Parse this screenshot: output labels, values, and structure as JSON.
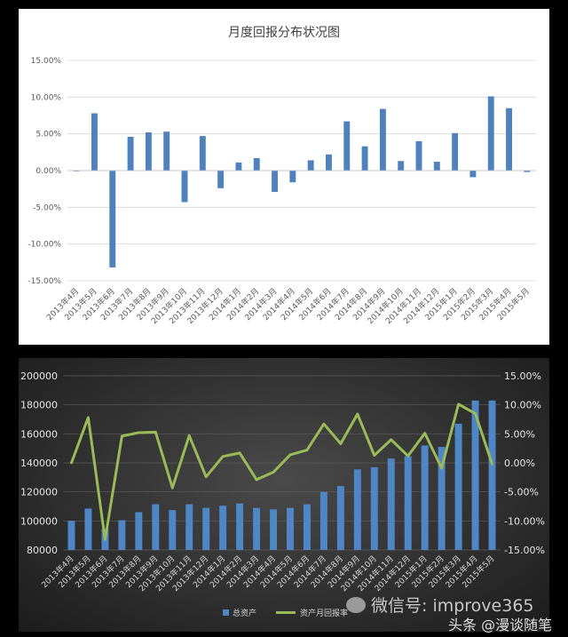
{
  "chart_data": [
    {
      "type": "bar",
      "title": "月度回报分布状况图",
      "categories": [
        "2013年4月",
        "2013年5月",
        "2013年6月",
        "2013年7月",
        "2013年8月",
        "2013年9月",
        "2013年10月",
        "2013年11月",
        "2013年12月",
        "2014年1月",
        "2014年2月",
        "2014年3月",
        "2014年4月",
        "2014年5月",
        "2014年6月",
        "2014年7月",
        "2014年8月",
        "2014年9月",
        "2014年10月",
        "2014年11月",
        "2014年12月",
        "2015年1月",
        "2015年2月",
        "2015年3月",
        "2015年4月",
        "2015年5月"
      ],
      "values": [
        0.0,
        7.8,
        -13.2,
        4.6,
        5.2,
        5.3,
        -4.3,
        4.7,
        -2.4,
        1.1,
        1.7,
        -2.9,
        -1.6,
        1.4,
        2.2,
        6.7,
        3.3,
        8.4,
        1.3,
        4.0,
        1.2,
        5.1,
        -0.9,
        10.1,
        8.5,
        -0.2
      ],
      "ylim": [
        -15,
        15
      ],
      "yticks": [
        "15.00%",
        "10.00%",
        "5.00%",
        "0.00%",
        "-5.00%",
        "-10.00%",
        "-15.00%"
      ],
      "color": "#4f81bd"
    },
    {
      "type": "bar+line",
      "categories": [
        "2013年4月",
        "2013年5月",
        "2013年6月",
        "2013年7月",
        "2013年8月",
        "2013年9月",
        "2013年10月",
        "2013年11月",
        "2013年12月",
        "2014年1月",
        "2014年2月",
        "2014年3月",
        "2014年4月",
        "2014年5月",
        "2014年6月",
        "2014年7月",
        "2014年8月",
        "2014年9月",
        "2014年10月",
        "2014年11月",
        "2014年12月",
        "2015年1月",
        "2015年2月",
        "2015年3月",
        "2015年4月",
        "2015年5月"
      ],
      "series": [
        {
          "name": "总资产",
          "axis": "left",
          "type": "bar",
          "color": "#4f86c6",
          "values": [
            100000,
            108500,
            94500,
            100500,
            106000,
            111500,
            107500,
            111500,
            109000,
            110500,
            112000,
            109000,
            108000,
            109000,
            111500,
            120000,
            124000,
            135500,
            137000,
            143000,
            144500,
            152000,
            151000,
            167000,
            183000,
            183000
          ]
        },
        {
          "name": "资产月回报率",
          "axis": "right",
          "type": "line",
          "color": "#9bbb59",
          "values": [
            0.0,
            7.8,
            -13.2,
            4.6,
            5.2,
            5.3,
            -4.3,
            4.7,
            -2.4,
            1.1,
            1.7,
            -2.9,
            -1.6,
            1.4,
            2.2,
            6.7,
            3.3,
            8.4,
            1.3,
            4.0,
            1.2,
            5.1,
            -0.9,
            10.1,
            8.5,
            -0.2
          ]
        }
      ],
      "ylim_left": [
        80000,
        200000
      ],
      "ylim_right": [
        -15,
        15
      ],
      "yticks_left": [
        "200000",
        "180000",
        "160000",
        "140000",
        "120000",
        "100000",
        "80000"
      ],
      "yticks_right": [
        "15.00%",
        "10.00%",
        "5.00%",
        "0.00%",
        "-5.00%",
        "-10.00%",
        "-15.00%"
      ]
    }
  ],
  "legend": {
    "bar_label": "总资产",
    "line_label": "资产月回报率"
  },
  "watermark": {
    "primary": "微信号: improve365",
    "secondary": "头条 @漫谈随笔"
  }
}
